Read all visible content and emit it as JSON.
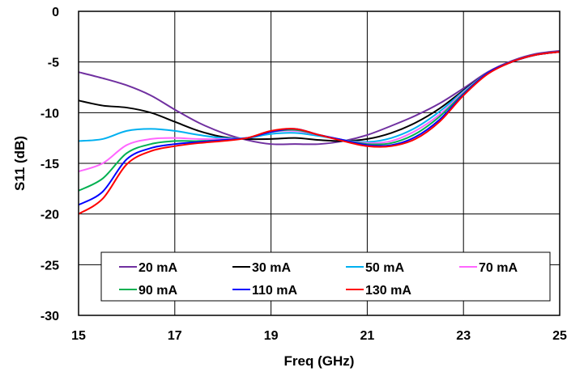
{
  "chart_data": {
    "type": "line",
    "title": "",
    "xlabel": "Freq (GHz)",
    "ylabel": "S11 (dB)",
    "xlim": [
      15,
      25
    ],
    "ylim": [
      -30,
      0
    ],
    "xticks": [
      "15",
      "17",
      "19",
      "21",
      "23",
      "25"
    ],
    "yticks": [
      "0",
      "-5",
      "-10",
      "-15",
      "-20",
      "-25",
      "-30"
    ],
    "grid": true,
    "legend_position": "bottom-center",
    "series": [
      {
        "name": "20 mA",
        "color": "#7030a0",
        "x": [
          15,
          15.5,
          16,
          16.5,
          17,
          17.5,
          18,
          18.5,
          19,
          19.5,
          20,
          20.5,
          21,
          21.5,
          22,
          22.5,
          23,
          23.5,
          24,
          24.5,
          25
        ],
        "y": [
          -6.0,
          -6.6,
          -7.3,
          -8.3,
          -9.7,
          -11.0,
          -12.0,
          -12.7,
          -13.1,
          -13.1,
          -13.1,
          -12.8,
          -12.2,
          -11.3,
          -10.3,
          -9.1,
          -7.6,
          -6.0,
          -4.9,
          -4.2,
          -3.9
        ]
      },
      {
        "name": "30 mA",
        "color": "#000000",
        "x": [
          15,
          15.5,
          16,
          16.5,
          17,
          17.5,
          18,
          18.5,
          19,
          19.5,
          20,
          20.5,
          21,
          21.5,
          22,
          22.5,
          23,
          23.5,
          24,
          24.5,
          25
        ],
        "y": [
          -8.8,
          -9.3,
          -9.5,
          -10.0,
          -10.9,
          -11.8,
          -12.4,
          -12.6,
          -12.6,
          -12.5,
          -12.7,
          -12.8,
          -12.6,
          -12.0,
          -11.0,
          -9.6,
          -7.8,
          -6.1,
          -5.0,
          -4.3,
          -4.0
        ]
      },
      {
        "name": "50 mA",
        "color": "#00b0f0",
        "x": [
          15,
          15.5,
          16,
          16.5,
          17,
          17.5,
          18,
          18.5,
          19,
          19.5,
          20,
          20.5,
          21,
          21.5,
          22,
          22.5,
          23,
          23.5,
          24,
          24.5,
          25
        ],
        "y": [
          -12.8,
          -12.6,
          -11.8,
          -11.6,
          -11.8,
          -12.2,
          -12.5,
          -12.5,
          -12.1,
          -12.0,
          -12.3,
          -12.7,
          -12.9,
          -12.5,
          -11.5,
          -9.9,
          -7.9,
          -6.1,
          -5.0,
          -4.3,
          -4.0
        ]
      },
      {
        "name": "70 mA",
        "color": "#ff66ff",
        "x": [
          15,
          15.5,
          16,
          16.5,
          17,
          17.5,
          18,
          18.5,
          19,
          19.5,
          20,
          20.5,
          21,
          21.5,
          22,
          22.5,
          23,
          23.5,
          24,
          24.5,
          25
        ],
        "y": [
          -15.8,
          -15.0,
          -13.2,
          -12.6,
          -12.5,
          -12.6,
          -12.6,
          -12.5,
          -11.9,
          -11.8,
          -12.2,
          -12.7,
          -13.0,
          -12.8,
          -11.8,
          -10.2,
          -8.0,
          -6.1,
          -5.0,
          -4.3,
          -4.0
        ]
      },
      {
        "name": "90 mA",
        "color": "#00b050",
        "x": [
          15,
          15.5,
          16,
          16.5,
          17,
          17.5,
          18,
          18.5,
          19,
          19.5,
          20,
          20.5,
          21,
          21.5,
          22,
          22.5,
          23,
          23.5,
          24,
          24.5,
          25
        ],
        "y": [
          -17.7,
          -16.5,
          -14.0,
          -13.1,
          -12.8,
          -12.8,
          -12.7,
          -12.5,
          -11.9,
          -11.7,
          -12.2,
          -12.7,
          -13.1,
          -13.0,
          -12.1,
          -10.4,
          -8.1,
          -6.1,
          -5.0,
          -4.3,
          -4.0
        ]
      },
      {
        "name": "110 mA",
        "color": "#0000ff",
        "x": [
          15,
          15.5,
          16,
          16.5,
          17,
          17.5,
          18,
          18.5,
          19,
          19.5,
          20,
          20.5,
          21,
          21.5,
          22,
          22.5,
          23,
          23.5,
          24,
          24.5,
          25
        ],
        "y": [
          -19.1,
          -17.8,
          -14.6,
          -13.5,
          -13.1,
          -12.9,
          -12.7,
          -12.5,
          -11.9,
          -11.6,
          -12.2,
          -12.7,
          -13.2,
          -13.2,
          -12.4,
          -10.7,
          -8.2,
          -6.1,
          -5.0,
          -4.3,
          -4.0
        ]
      },
      {
        "name": "130 mA",
        "color": "#ff0000",
        "x": [
          15,
          15.5,
          16,
          16.5,
          17,
          17.5,
          18,
          18.5,
          19,
          19.5,
          20,
          20.5,
          21,
          21.5,
          22,
          22.5,
          23,
          23.5,
          24,
          24.5,
          25
        ],
        "y": [
          -20.0,
          -18.5,
          -15.1,
          -13.8,
          -13.3,
          -13.0,
          -12.8,
          -12.5,
          -11.8,
          -11.6,
          -12.2,
          -12.8,
          -13.3,
          -13.3,
          -12.6,
          -10.9,
          -8.3,
          -6.2,
          -5.0,
          -4.3,
          -4.0
        ]
      }
    ]
  }
}
